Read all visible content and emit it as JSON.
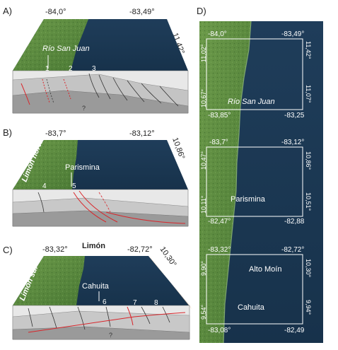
{
  "panels": {
    "a": {
      "letter": "A)",
      "lon_left": "-84,0°",
      "lon_right": "-83,49°",
      "lat_edge": "11,42°",
      "place": "Río San Juan",
      "faults": [
        "1",
        "2",
        "3"
      ],
      "query": "?"
    },
    "b": {
      "letter": "B)",
      "lon_left": "-83,7°",
      "lon_right": "-83,12°",
      "lat_edge": "10,86°",
      "region": "Limón norte",
      "place": "Parismina",
      "faults": [
        "4",
        "5"
      ]
    },
    "c": {
      "letter": "C)",
      "lon_left": "-83,32°",
      "lon_right": "-82,72°",
      "lat_edge": "10,30°",
      "top_label": "Limón",
      "region": "Limón sur",
      "place": "Cahuita",
      "faults": [
        "6",
        "7",
        "8"
      ],
      "query": "?"
    },
    "d": {
      "letter": "D)",
      "boxes": [
        {
          "tl": "-84,0°",
          "tr": "-83,49°",
          "lat_top_left": "11,02°",
          "lat_top_right": "11,42°",
          "lat_bot_left": "10,67°",
          "lat_bot_right": "11,07°",
          "bl": "-83,85°",
          "br": "-83,25",
          "place": "Río San Juan"
        },
        {
          "tl": "-83,7°",
          "tr": "-83,12°",
          "lat_top_left": "10,47°",
          "lat_top_right": "10,86°",
          "lat_bot_left": "10,11°",
          "lat_bot_right": "10,51°",
          "bl": "-82,47°",
          "br": "-82,88",
          "place": "Parismina"
        },
        {
          "tl": "-83,32°",
          "tr": "-82,72°",
          "lat_top_left": "9,90°",
          "lat_top_right": "10,30°",
          "lat_bot_left": "9,54°",
          "lat_bot_right": "9,94°",
          "bl": "-83,08°",
          "br": "-82,49",
          "place": "Cahuita",
          "place2": "Alto Moín"
        }
      ]
    }
  },
  "colors": {
    "land": "#5d8a3f",
    "land_dark": "#3f6b2c",
    "sea": "#1d3a55",
    "sea_deep": "#142c44",
    "crust_light": "#e9e9e9",
    "crust_mid": "#bdbdbd",
    "crust_dark": "#8e8e8e",
    "fault_red": "#d9262b",
    "fault_black": "#333333",
    "frame_peach": "#f6d6b6"
  }
}
